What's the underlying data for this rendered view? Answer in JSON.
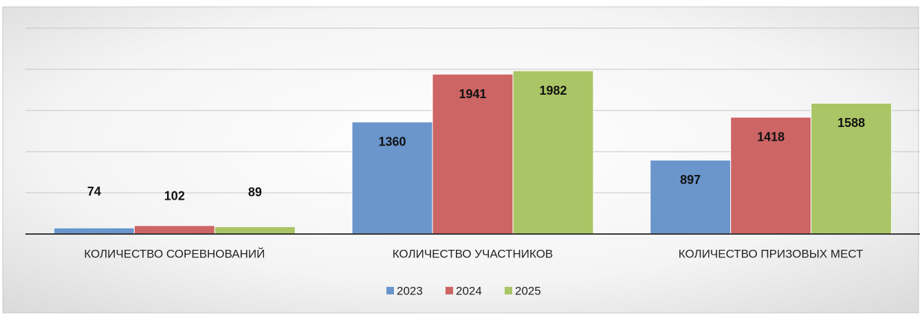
{
  "chart_data": {
    "type": "bar",
    "categories": [
      "КОЛИЧЕСТВО СОРЕВНОВАНИЙ",
      "КОЛИЧЕСТВО УЧАСТНИКОВ",
      "КОЛИЧЕСТВО ПРИЗОВЫХ МЕСТ"
    ],
    "series": [
      {
        "name": "2023",
        "color": "#6a96cc",
        "values": [
          74,
          1360,
          897
        ]
      },
      {
        "name": "2024",
        "color": "#cd6565",
        "values": [
          102,
          1941,
          1418
        ]
      },
      {
        "name": "2025",
        "color": "#a9c566",
        "values": [
          89,
          1982,
          1588
        ]
      }
    ],
    "ylim": [
      0,
      2500
    ],
    "yticks": [
      0,
      500,
      1000,
      1500,
      2000,
      2500
    ],
    "grid": true,
    "legend": "bottom"
  }
}
